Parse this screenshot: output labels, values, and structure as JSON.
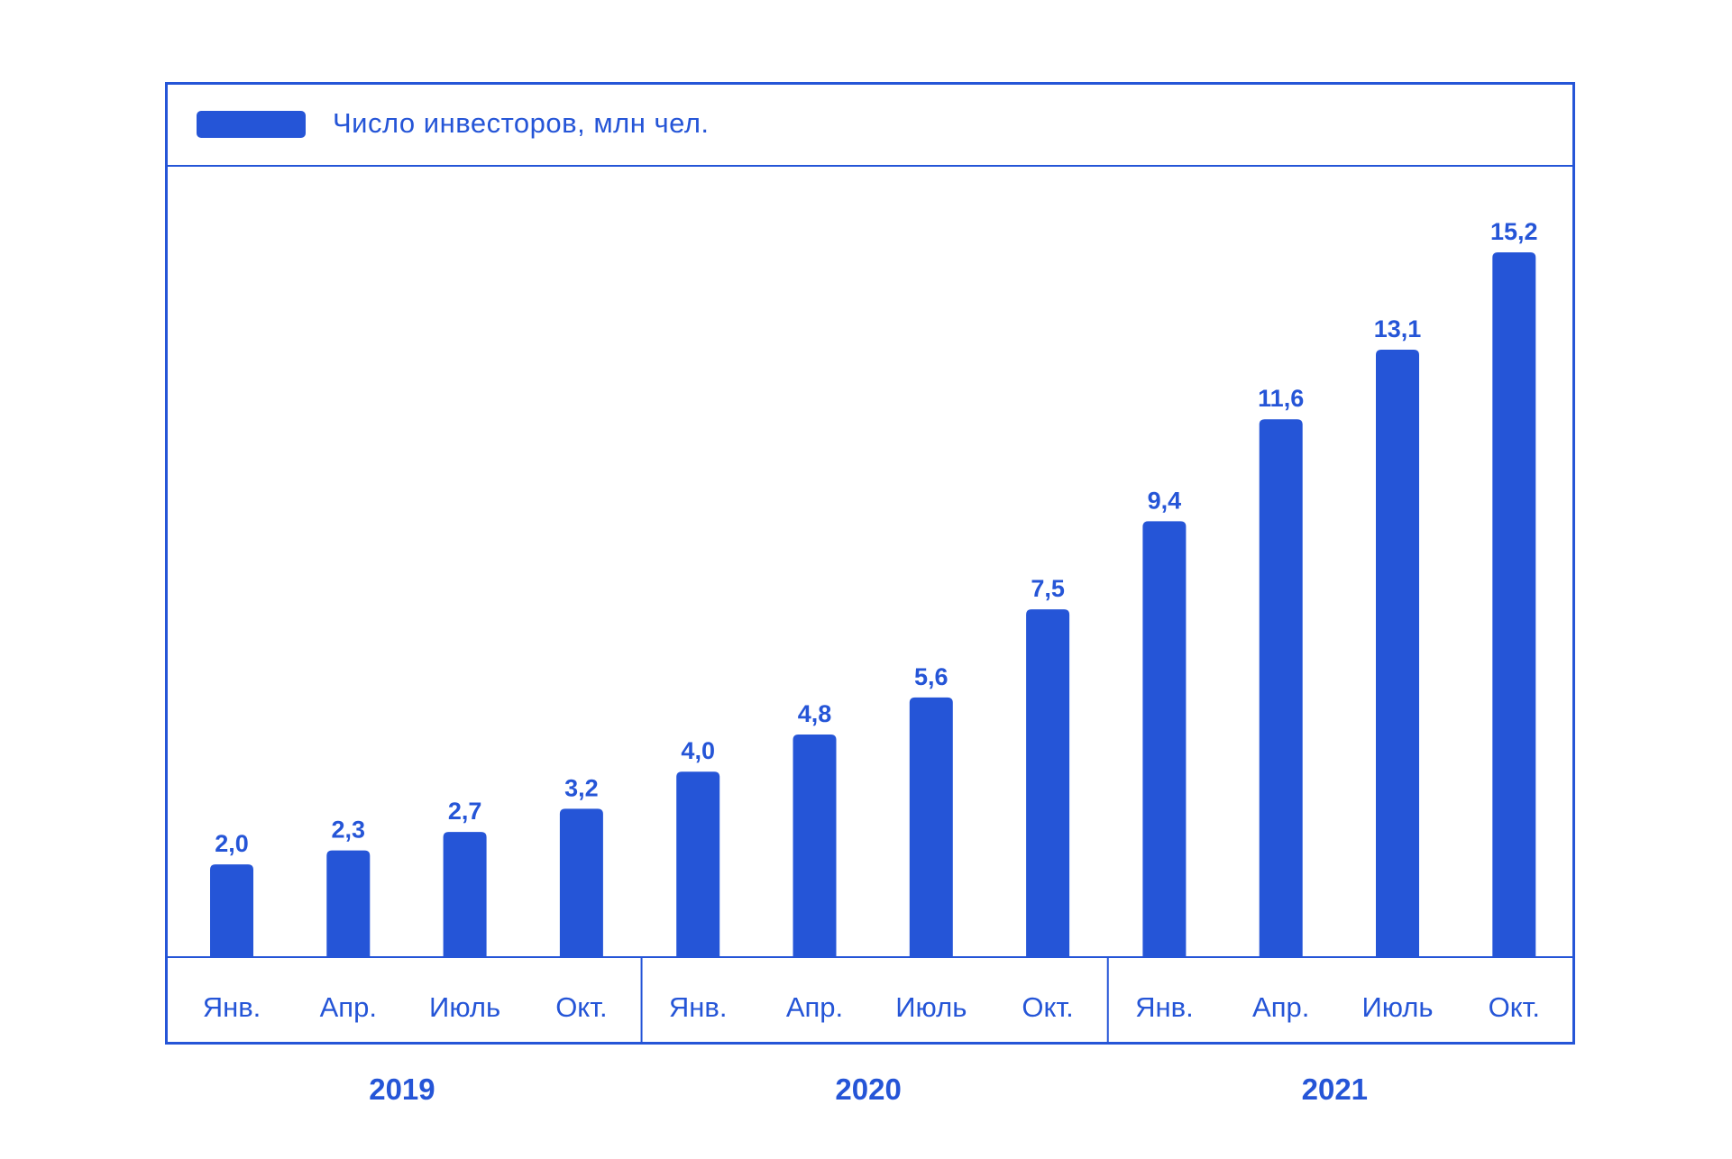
{
  "legend": {
    "label": "Число инвесторов, млн чел."
  },
  "colors": {
    "accent": "#2555d7"
  },
  "chart_data": {
    "type": "bar",
    "title": "",
    "xlabel": "",
    "ylabel": "",
    "grid": false,
    "legend_position": "top-left",
    "ylim": [
      0,
      16
    ],
    "categories": [
      "Янв.",
      "Апр.",
      "Июль",
      "Окт.",
      "Янв.",
      "Апр.",
      "Июль",
      "Окт.",
      "Янв.",
      "Апр.",
      "Июль",
      "Окт."
    ],
    "groups": [
      {
        "label": "2019",
        "categories": [
          "Янв.",
          "Апр.",
          "Июль",
          "Окт."
        ]
      },
      {
        "label": "2020",
        "categories": [
          "Янв.",
          "Апр.",
          "Июль",
          "Окт."
        ]
      },
      {
        "label": "2021",
        "categories": [
          "Янв.",
          "Апр.",
          "Июль",
          "Окт."
        ]
      }
    ],
    "series": [
      {
        "name": "Число инвесторов, млн чел.",
        "values": [
          2.0,
          2.3,
          2.7,
          3.2,
          4.0,
          4.8,
          5.6,
          7.5,
          9.4,
          11.6,
          13.1,
          15.2
        ],
        "value_labels": [
          "2,0",
          "2,3",
          "2,7",
          "3,2",
          "4,0",
          "4,8",
          "5,6",
          "7,5",
          "9,4",
          "11,6",
          "13,1",
          "15,2"
        ]
      }
    ]
  }
}
